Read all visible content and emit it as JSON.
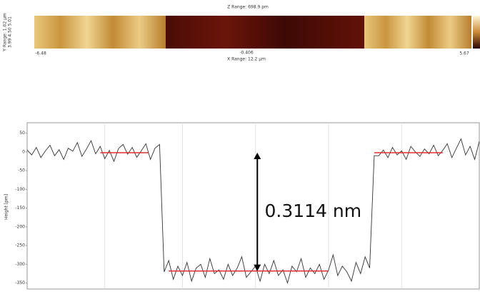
{
  "image": {
    "z_range": "Z Range: 698.9 pm",
    "y_range": "Y Range: 1.02 µm",
    "y_ticks": "3.99 4.50 5.01",
    "x_left": "-6.48",
    "x_center": "-0.406",
    "x_right": "5.67",
    "x_range": "X Range: 12.2 µm"
  },
  "chart_data": {
    "type": "line",
    "y_label": "Height [pm]",
    "values": [
      5,
      -8,
      12,
      -15,
      3,
      18,
      -10,
      6,
      -20,
      10,
      2,
      25,
      -12,
      8,
      30,
      -5,
      15,
      -18,
      4,
      -25,
      9,
      20,
      -6,
      12,
      -14,
      3,
      22,
      -20,
      10,
      20,
      -320,
      -290,
      -340,
      -305,
      -330,
      -295,
      -345,
      -310,
      -300,
      -335,
      -285,
      -325,
      -315,
      -340,
      -300,
      -330,
      -310,
      -280,
      -335,
      -320,
      -305,
      -345,
      -300,
      -325,
      -290,
      -330,
      -315,
      -350,
      -305,
      -320,
      -285,
      -335,
      -310,
      -325,
      -300,
      -340,
      -315,
      -275,
      -330,
      -305,
      -320,
      -345,
      -295,
      -325,
      -280,
      -310,
      -10,
      -10,
      5,
      -15,
      12,
      -8,
      3,
      -20,
      15,
      0,
      -12,
      8,
      -5,
      18,
      -10,
      4,
      22,
      -15,
      10,
      35,
      -8,
      15,
      -20,
      28
    ],
    "color": "#333333",
    "xlim": [
      0,
      99
    ],
    "xticks": [
      17,
      34,
      50,
      66,
      82
    ],
    "ylim": [
      -366,
      78
    ],
    "yticks": [
      50,
      0,
      -50,
      -100,
      -150,
      -200,
      -250,
      -300,
      -350
    ],
    "grid": true,
    "reference_lines": [
      {
        "y": -2,
        "x": [
          16,
          26.5
        ],
        "color": "#e03030"
      },
      {
        "y": -318,
        "x": [
          31,
          66
        ],
        "color": "#e03030"
      },
      {
        "y": -2,
        "x": [
          76,
          91
        ],
        "color": "#e03030"
      }
    ],
    "annotation": {
      "text": "0.3114 nm",
      "x": 52,
      "y": -160,
      "arrow_x": 50.4
    }
  }
}
